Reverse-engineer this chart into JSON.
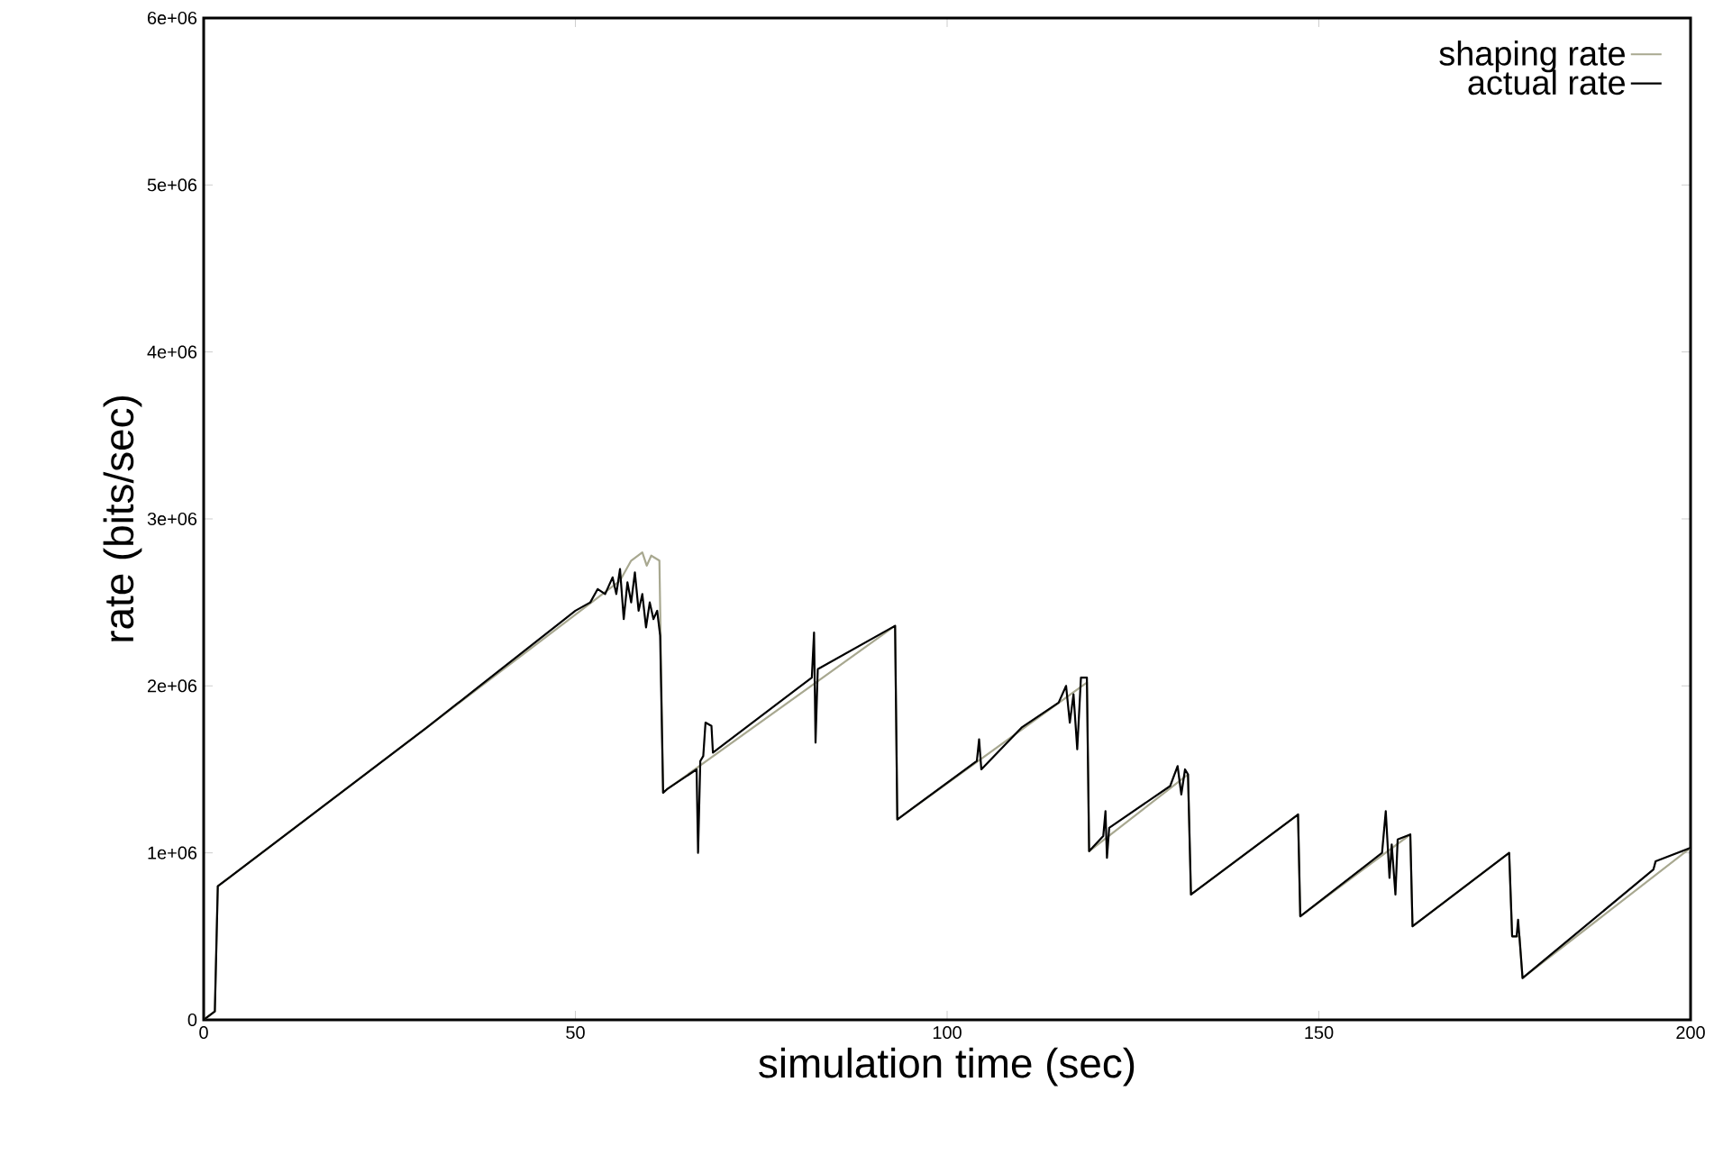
{
  "chart_data": {
    "type": "line",
    "xlabel": "simulation time (sec)",
    "ylabel": "rate (bits/sec)",
    "xlim": [
      0,
      200
    ],
    "ylim": [
      0,
      6000000
    ],
    "xticks": [
      0,
      50,
      100,
      150,
      200
    ],
    "yticks": [
      0,
      {
        "value": 1000000,
        "label": "1e+06"
      },
      {
        "value": 2000000,
        "label": "2e+06"
      },
      {
        "value": 3000000,
        "label": "3e+06"
      },
      {
        "value": 4000000,
        "label": "4e+06"
      },
      {
        "value": 5000000,
        "label": "5e+06"
      },
      {
        "value": 6000000,
        "label": "6e+06"
      }
    ],
    "grid": false,
    "legend": "top right",
    "marker": "none",
    "line_style": "solid",
    "series": [
      {
        "name": "shaping rate",
        "color": "#a8a890",
        "x": [
          0,
          1.5,
          1.9,
          56,
          57.5,
          59,
          59.6,
          60.2,
          61.3,
          61.8,
          62.3,
          93,
          93.3,
          118.8,
          119.1,
          132.4,
          132.8,
          147.2,
          147.5,
          162.3,
          162.6,
          175.6,
          176,
          177,
          177.4,
          200
        ],
        "values": [
          0,
          50000,
          800000,
          2630000,
          2750000,
          2800000,
          2720000,
          2780000,
          2750000,
          1360000,
          1380000,
          2360000,
          1200000,
          2020000,
          1010000,
          1470000,
          750000,
          1230000,
          620000,
          1110000,
          560000,
          1000000,
          500000,
          500000,
          250000,
          1030000
        ]
      },
      {
        "name": "actual rate",
        "color": "#000000",
        "x": [
          0,
          1.5,
          1.9,
          30,
          48,
          50,
          52,
          53,
          54,
          55,
          55.5,
          56,
          56.5,
          57,
          57.5,
          58,
          58.5,
          59,
          59.5,
          60,
          60.5,
          61,
          61.4,
          61.8,
          62.3,
          66.3,
          66.5,
          66.8,
          67.2,
          67.5,
          68.3,
          68.5,
          81.8,
          82.1,
          82.3,
          82.6,
          93,
          93.3,
          104,
          104.3,
          104.6,
          110,
          115,
          116,
          116.5,
          117,
          117.5,
          118,
          118.8,
          119.1,
          121,
          121.3,
          121.5,
          121.8,
          130,
          131,
          131.5,
          132,
          132.4,
          132.8,
          147.2,
          147.5,
          158.5,
          159,
          159.5,
          159.8,
          160.3,
          160.6,
          162.3,
          162.6,
          175.6,
          176,
          176.6,
          176.8,
          177.4,
          195,
          195.3,
          200
        ],
        "values": [
          0,
          50000,
          800000,
          1750000,
          2380000,
          2450000,
          2500000,
          2580000,
          2550000,
          2650000,
          2550000,
          2700000,
          2400000,
          2620000,
          2500000,
          2680000,
          2450000,
          2550000,
          2350000,
          2500000,
          2400000,
          2450000,
          2300000,
          1360000,
          1380000,
          1500000,
          1000000,
          1550000,
          1580000,
          1780000,
          1760000,
          1600000,
          2050000,
          2320000,
          1660000,
          2100000,
          2360000,
          1200000,
          1550000,
          1680000,
          1500000,
          1750000,
          1900000,
          2000000,
          1780000,
          1950000,
          1620000,
          2050000,
          2050000,
          1010000,
          1100000,
          1250000,
          970000,
          1150000,
          1400000,
          1520000,
          1350000,
          1500000,
          1470000,
          750000,
          1230000,
          620000,
          1000000,
          1250000,
          850000,
          1050000,
          750000,
          1080000,
          1110000,
          560000,
          1000000,
          500000,
          500000,
          600000,
          250000,
          900000,
          950000,
          1030000
        ]
      }
    ]
  }
}
